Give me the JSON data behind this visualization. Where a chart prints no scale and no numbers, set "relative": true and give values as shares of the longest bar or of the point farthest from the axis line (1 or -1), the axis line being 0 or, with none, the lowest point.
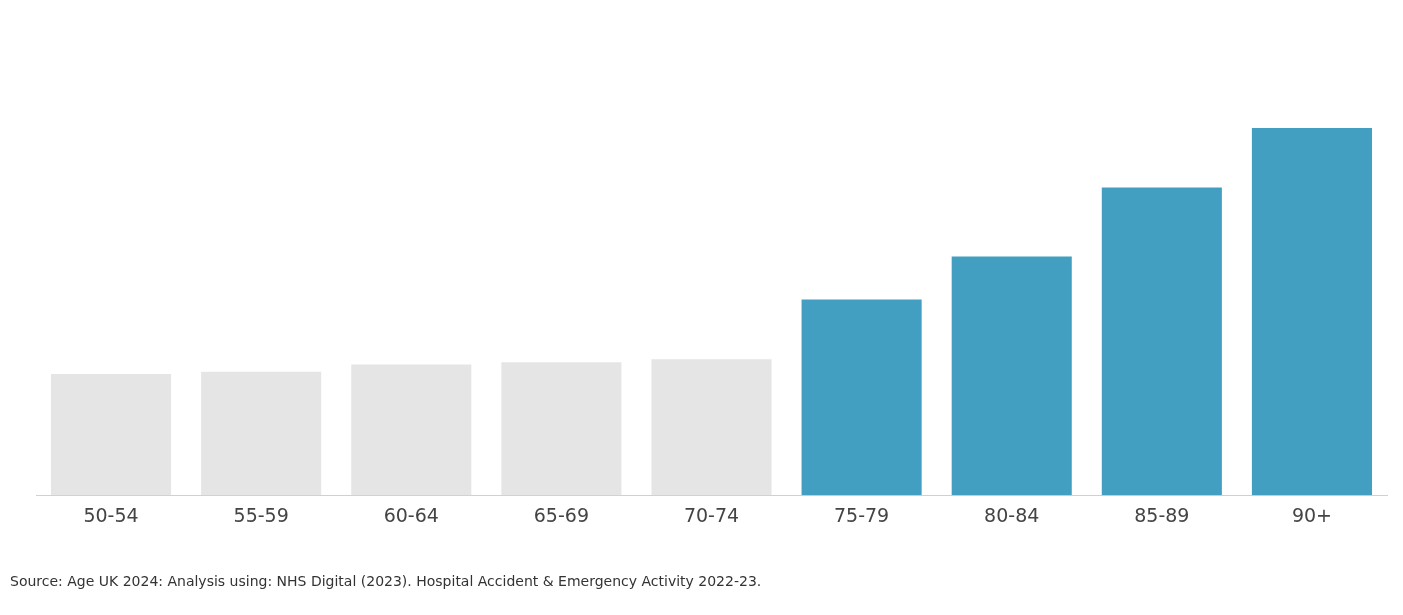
{
  "chart_data": {
    "type": "bar",
    "relative": true,
    "categories": [
      "50-54",
      "55-59",
      "60-64",
      "65-69",
      "70-74",
      "75-79",
      "80-84",
      "85-89",
      "90+"
    ],
    "values": [
      0.33,
      0.336,
      0.356,
      0.362,
      0.37,
      0.533,
      0.65,
      0.838,
      1
    ],
    "colors": [
      "#e5e5e5",
      "#e5e5e5",
      "#e5e5e5",
      "#e5e5e5",
      "#e5e5e5",
      "#429fc2",
      "#429fc2",
      "#429fc2",
      "#429fc2"
    ],
    "grid": false,
    "legend": false,
    "annotations": [
      "Source: Age UK 2024: Analysis using: NHS Digital (2023). Hospital Accident & Emergency Activity 2022-23."
    ]
  }
}
